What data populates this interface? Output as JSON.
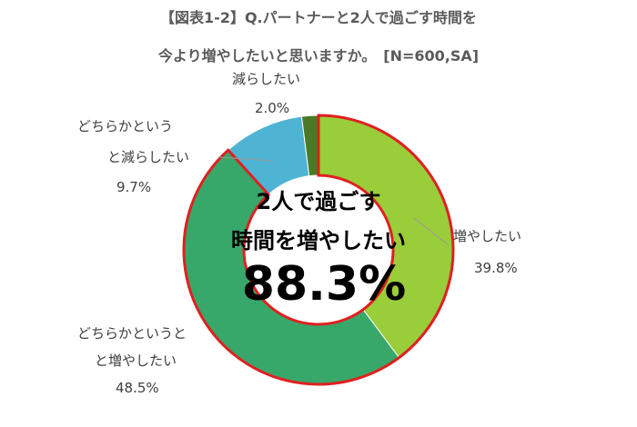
{
  "title": {
    "line1": "【図表1-2】Q.パートナーと2人で過ごす時間を",
    "line2": "今より増やしたいと思いますか。　[N=600,SA]"
  },
  "center": {
    "line1": "2人で過ごす",
    "line2": "時間を増やしたい",
    "value": "88.3%"
  },
  "chart_data": {
    "type": "pie",
    "donut": true,
    "categories": [
      "増やしたい",
      "どちらかというと増やしたい",
      "どちらかというと減らしたい",
      "減らしたい"
    ],
    "values": [
      39.8,
      48.5,
      9.7,
      2.0
    ],
    "value_labels": [
      "39.8%",
      "48.5%",
      "9.7%",
      "2.0%"
    ],
    "colors": [
      "#9ACD3A",
      "#38A76A",
      "#4FB3D3",
      "#4A7A25"
    ],
    "highlight_outline": "#E02020",
    "highlighted_categories": [
      "増やしたい",
      "どちらかというと増やしたい"
    ]
  },
  "labels": {
    "inc": {
      "name": "増やしたい",
      "pct": "39.8%"
    },
    "sinc": {
      "line1": "どちらかというと",
      "line2": "と増やしたい",
      "pct": "48.5%"
    },
    "sdec": {
      "line1": "どちらかという",
      "line2": "と減らしたい",
      "pct": "9.7%"
    },
    "dec": {
      "name": "減らしたい",
      "pct": "2.0%"
    }
  }
}
